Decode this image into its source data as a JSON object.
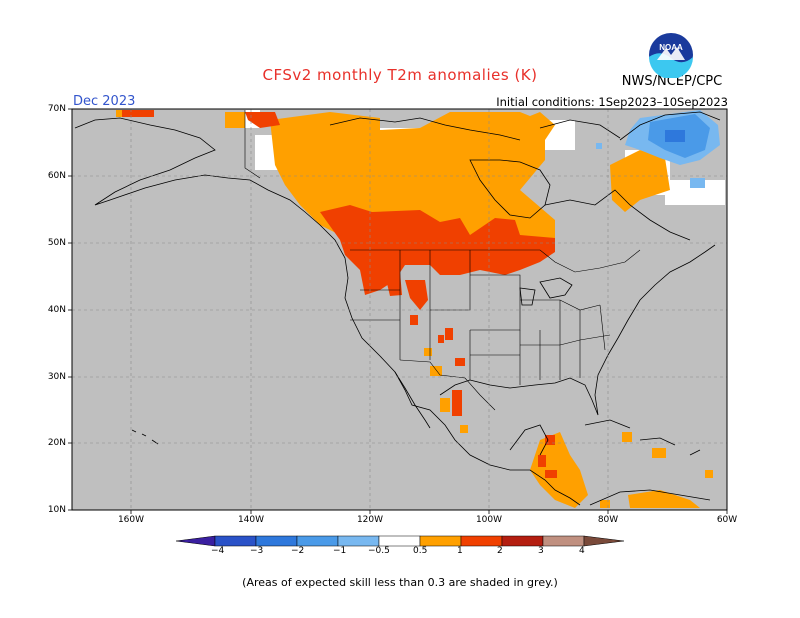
{
  "title": "CFSv2 monthly T2m anomalies (K)",
  "organization": "NWS/NCEP/CPC",
  "logo_text": "NOAA",
  "valid_month": "Dec 2023",
  "initial_conditions": "Initial conditions: 1Sep2023–10Sep2023",
  "latitude_labels": [
    "70N",
    "60N",
    "50N",
    "40N",
    "30N",
    "20N",
    "10N"
  ],
  "longitude_labels": [
    "160W",
    "140W",
    "120W",
    "100W",
    "80W",
    "60W"
  ],
  "colorbar": {
    "labels": [
      "−4",
      "−3",
      "−2",
      "−1",
      "−0.5",
      "0.5",
      "1",
      "2",
      "3",
      "4"
    ],
    "colors": [
      "#3a1fa0",
      "#2a52c8",
      "#2e78dc",
      "#4a9ae8",
      "#78b8f0",
      "#ffffff",
      "#ffa000",
      "#f04000",
      "#b41e10",
      "#c09080",
      "#7a4a3a"
    ]
  },
  "footnote": "(Areas of expected skill less than 0.3 are shaded in grey.)",
  "colors": {
    "land_grey": "#bfbfbf",
    "ocean_grey": "#bfbfbf",
    "title_red": "#e8302a",
    "month_blue": "#3355cc"
  }
}
